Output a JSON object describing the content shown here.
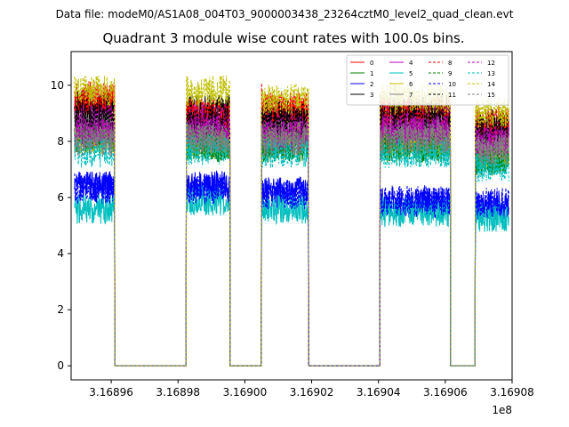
{
  "chart_data": {
    "type": "line",
    "suptitle": "Data file: modeM0/AS1A08_004T03_9000003438_23264cztM0_level2_quad_clean.evt",
    "title": "Quadrant 3 module wise count rates with 100.0s bins.",
    "xlabel": "",
    "ylabel": "",
    "x_offset_label": "1e8",
    "xlim": [
      3.168948,
      3.16908
    ],
    "ylim": [
      -0.5,
      11.2
    ],
    "xticks": [
      3.16896,
      3.16898,
      3.169,
      3.16902,
      3.16904,
      3.16906,
      3.16908
    ],
    "xtick_labels": [
      "3.16896",
      "3.16898",
      "3.16900",
      "3.16902",
      "3.16904",
      "3.16906",
      "3.16908"
    ],
    "yticks": [
      0,
      2,
      4,
      6,
      8,
      10
    ],
    "ytick_labels": [
      "0",
      "2",
      "4",
      "6",
      "8",
      "10"
    ],
    "grid": false,
    "legend_position": "top-right",
    "on_segments": [
      [
        3.168949,
        3.168961
      ],
      [
        3.1689825,
        3.1689955
      ],
      [
        3.169005,
        3.169019
      ],
      [
        3.1690405,
        3.1690615
      ],
      [
        3.169069,
        3.169079
      ]
    ],
    "series": [
      {
        "name": "0",
        "color": "#ff0000",
        "dash": false,
        "segment_levels": [
          9.3,
          8.5,
          8.7,
          8.5,
          8.3
        ]
      },
      {
        "name": "1",
        "color": "#008000",
        "dash": false,
        "segment_levels": [
          8.4,
          7.8,
          7.8,
          7.8,
          7.3
        ]
      },
      {
        "name": "2",
        "color": "#0000ff",
        "dash": false,
        "segment_levels": [
          6.4,
          6.4,
          6.2,
          5.8,
          5.7
        ]
      },
      {
        "name": "3",
        "color": "#000000",
        "dash": false,
        "segment_levels": [
          9.3,
          9.1,
          9.0,
          9.1,
          8.6
        ]
      },
      {
        "name": "4",
        "color": "#bf00bf",
        "dash": false,
        "segment_levels": [
          8.8,
          8.8,
          8.5,
          8.8,
          8.2
        ]
      },
      {
        "name": "5",
        "color": "#00bfbf",
        "dash": false,
        "segment_levels": [
          5.6,
          5.9,
          5.6,
          5.5,
          5.3
        ]
      },
      {
        "name": "6",
        "color": "#bfbf00",
        "dash": false,
        "segment_levels": [
          8.1,
          8.0,
          8.2,
          8.0,
          7.6
        ]
      },
      {
        "name": "7",
        "color": "#808080",
        "dash": false,
        "segment_levels": [
          8.5,
          8.3,
          8.3,
          8.4,
          7.9
        ]
      },
      {
        "name": "8",
        "color": "#ff0000",
        "dash": true,
        "segment_levels": [
          9.6,
          9.0,
          9.2,
          9.1,
          8.7
        ]
      },
      {
        "name": "9",
        "color": "#008000",
        "dash": true,
        "segment_levels": [
          8.1,
          7.9,
          7.9,
          7.9,
          7.4
        ]
      },
      {
        "name": "10",
        "color": "#0000ff",
        "dash": true,
        "segment_levels": [
          6.3,
          6.3,
          6.1,
          5.9,
          5.8
        ]
      },
      {
        "name": "11",
        "color": "#000000",
        "dash": true,
        "segment_levels": [
          8.9,
          8.7,
          8.7,
          8.9,
          8.4
        ]
      },
      {
        "name": "12",
        "color": "#bf00bf",
        "dash": true,
        "segment_levels": [
          8.3,
          8.4,
          8.2,
          8.4,
          8.0
        ]
      },
      {
        "name": "13",
        "color": "#00bfbf",
        "dash": true,
        "segment_levels": [
          7.6,
          7.7,
          7.6,
          7.6,
          7.1
        ]
      },
      {
        "name": "14",
        "color": "#bfbf00",
        "dash": true,
        "segment_levels": [
          9.8,
          9.8,
          9.5,
          9.5,
          9.0
        ]
      },
      {
        "name": "15",
        "color": "#808080",
        "dash": true,
        "segment_levels": [
          8.0,
          8.1,
          8.0,
          8.1,
          7.7
        ]
      }
    ]
  }
}
